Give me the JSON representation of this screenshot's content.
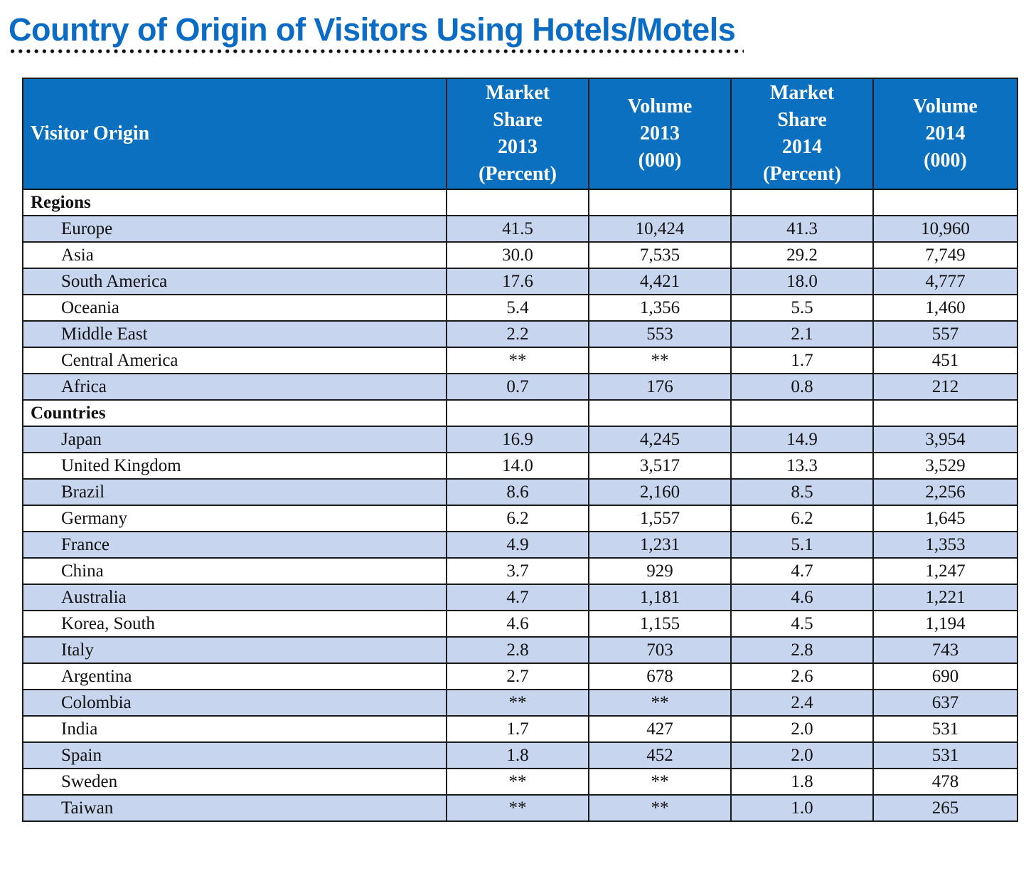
{
  "title": "Country of Origin of Visitors Using Hotels/Motels",
  "table": {
    "headers": [
      [
        "Visitor Origin"
      ],
      [
        "Market",
        "Share",
        "2013",
        "(Percent)"
      ],
      [
        "Volume",
        "2013",
        "(000)"
      ],
      [
        "Market",
        "Share",
        "2014",
        "(Percent)"
      ],
      [
        "Volume",
        "2014",
        "(000)"
      ]
    ],
    "sections": [
      {
        "label": "Regions",
        "rows": [
          [
            "Europe",
            "41.5",
            "10,424",
            "41.3",
            "10,960"
          ],
          [
            "Asia",
            "30.0",
            "7,535",
            "29.2",
            "7,749"
          ],
          [
            "South America",
            "17.6",
            "4,421",
            "18.0",
            "4,777"
          ],
          [
            "Oceania",
            "5.4",
            "1,356",
            "5.5",
            "1,460"
          ],
          [
            "Middle East",
            "2.2",
            "553",
            "2.1",
            "557"
          ],
          [
            "Central America",
            "**",
            "**",
            "1.7",
            "451"
          ],
          [
            "Africa",
            "0.7",
            "176",
            "0.8",
            "212"
          ]
        ]
      },
      {
        "label": "Countries",
        "rows": [
          [
            "Japan",
            "16.9",
            "4,245",
            "14.9",
            "3,954"
          ],
          [
            "United Kingdom",
            "14.0",
            "3,517",
            "13.3",
            "3,529"
          ],
          [
            "Brazil",
            "8.6",
            "2,160",
            "8.5",
            "2,256"
          ],
          [
            "Germany",
            "6.2",
            "1,557",
            "6.2",
            "1,645"
          ],
          [
            "France",
            "4.9",
            "1,231",
            "5.1",
            "1,353"
          ],
          [
            "China",
            "3.7",
            "929",
            "4.7",
            "1,247"
          ],
          [
            "Australia",
            "4.7",
            "1,181",
            "4.6",
            "1,221"
          ],
          [
            "Korea, South",
            "4.6",
            "1,155",
            "4.5",
            "1,194"
          ],
          [
            "Italy",
            "2.8",
            "703",
            "2.8",
            "743"
          ],
          [
            "Argentina",
            "2.7",
            "678",
            "2.6",
            "690"
          ],
          [
            "Colombia",
            "**",
            "**",
            "2.4",
            "637"
          ],
          [
            "India",
            "1.7",
            "427",
            "2.0",
            "531"
          ],
          [
            "Spain",
            "1.8",
            "452",
            "2.0",
            "531"
          ],
          [
            "Sweden",
            "**",
            "**",
            "1.8",
            "478"
          ],
          [
            "Taiwan",
            "**",
            "**",
            "1.0",
            "265"
          ]
        ]
      }
    ]
  }
}
